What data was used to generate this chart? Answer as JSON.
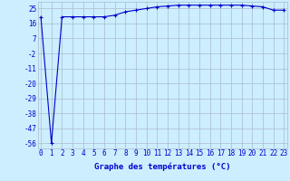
{
  "x": [
    0,
    1,
    2,
    3,
    4,
    5,
    6,
    7,
    8,
    9,
    10,
    11,
    12,
    13,
    14,
    15,
    16,
    17,
    18,
    19,
    20,
    21,
    22,
    23
  ],
  "y": [
    20,
    -56,
    20,
    20,
    20,
    20,
    20,
    21,
    23,
    24,
    25,
    26,
    26.5,
    27,
    27,
    27,
    27,
    27,
    27,
    27,
    26.5,
    26,
    24,
    24
  ],
  "bg_color": "#cceeff",
  "line_color": "#0000cc",
  "marker": "+",
  "xlabel": "Graphe des températures (°C)",
  "xlabel_fontsize": 6.5,
  "yticks": [
    25,
    16,
    7,
    -2,
    -11,
    -20,
    -29,
    -38,
    -47,
    -56
  ],
  "xticks": [
    0,
    1,
    2,
    3,
    4,
    5,
    6,
    7,
    8,
    9,
    10,
    11,
    12,
    13,
    14,
    15,
    16,
    17,
    18,
    19,
    20,
    21,
    22,
    23
  ],
  "ylim": [
    -59,
    29
  ],
  "xlim": [
    -0.3,
    23.3
  ],
  "grid_color": "#aabbcc",
  "tick_fontsize": 5.5,
  "line_width": 0.8,
  "marker_size": 3.5
}
